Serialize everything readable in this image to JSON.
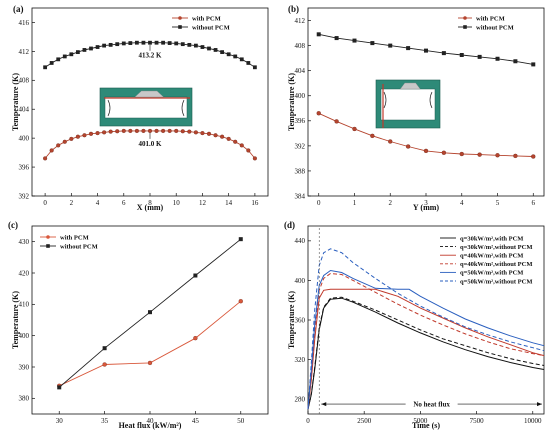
{
  "chart_data": [
    {
      "panel": "(a)",
      "type": "line",
      "xlabel": "X (mm)",
      "ylabel": "Temperature (K)",
      "xlim": [
        -1,
        17
      ],
      "ylim": [
        392,
        418
      ],
      "xticks": [
        0,
        2,
        4,
        6,
        8,
        10,
        12,
        14,
        16
      ],
      "yticks": [
        392,
        396,
        400,
        404,
        408,
        412,
        416
      ],
      "legend": "top-right",
      "annotations": [
        {
          "text": "413.2 K",
          "x": 8,
          "y": 413.2
        },
        {
          "text": "401.0 K",
          "x": 8,
          "y": 401.0
        }
      ],
      "series": [
        {
          "name": "with PCM",
          "color": "#b5442e",
          "marker": "circle",
          "x": [
            0,
            0.5,
            1,
            1.5,
            2,
            2.5,
            3,
            3.5,
            4,
            4.5,
            5,
            5.5,
            6,
            6.5,
            7,
            7.5,
            8,
            8.5,
            9,
            9.5,
            10,
            10.5,
            11,
            11.5,
            12,
            12.5,
            13,
            13.5,
            14,
            14.5,
            15,
            15.5,
            16
          ],
          "y": [
            397.2,
            398.3,
            399.0,
            399.5,
            399.9,
            400.2,
            400.4,
            400.6,
            400.7,
            400.8,
            400.9,
            400.95,
            401.0,
            401.0,
            401.0,
            401.0,
            401.0,
            401.0,
            401.0,
            401.0,
            401.0,
            400.95,
            400.9,
            400.8,
            400.7,
            400.6,
            400.4,
            400.2,
            399.9,
            399.5,
            399.0,
            398.3,
            397.2
          ]
        },
        {
          "name": "without PCM",
          "color": "#222222",
          "marker": "square",
          "x": [
            0,
            0.5,
            1,
            1.5,
            2,
            2.5,
            3,
            3.5,
            4,
            4.5,
            5,
            5.5,
            6,
            6.5,
            7,
            7.5,
            8,
            8.5,
            9,
            9.5,
            10,
            10.5,
            11,
            11.5,
            12,
            12.5,
            13,
            13.5,
            14,
            14.5,
            15,
            15.5,
            16
          ],
          "y": [
            409.8,
            410.4,
            410.9,
            411.3,
            411.6,
            411.9,
            412.2,
            412.4,
            412.6,
            412.8,
            412.9,
            413.0,
            413.1,
            413.15,
            413.2,
            413.2,
            413.2,
            413.2,
            413.2,
            413.15,
            413.1,
            413.0,
            412.9,
            412.8,
            412.6,
            412.4,
            412.2,
            411.9,
            411.6,
            411.3,
            410.9,
            410.4,
            409.8
          ]
        }
      ]
    },
    {
      "panel": "(b)",
      "type": "line",
      "xlabel": "Y (mm)",
      "ylabel": "Temperature (K)",
      "xlim": [
        -0.3,
        6.3
      ],
      "ylim": [
        384,
        414
      ],
      "xticks": [
        0,
        1,
        2,
        3,
        4,
        5,
        6
      ],
      "yticks": [
        384,
        388,
        392,
        396,
        400,
        404,
        408,
        412
      ],
      "legend": "top-right",
      "series": [
        {
          "name": "with PCM",
          "color": "#b5442e",
          "marker": "circle",
          "x": [
            0,
            0.5,
            1,
            1.5,
            2,
            2.5,
            3,
            3.5,
            4,
            4.5,
            5,
            5.5,
            6
          ],
          "y": [
            397.2,
            395.9,
            394.7,
            393.6,
            392.7,
            391.9,
            391.2,
            390.9,
            390.7,
            390.6,
            390.5,
            390.4,
            390.3
          ]
        },
        {
          "name": "without PCM",
          "color": "#222222",
          "marker": "square",
          "x": [
            0,
            0.5,
            1,
            1.5,
            2,
            2.5,
            3,
            3.5,
            4,
            4.5,
            5,
            5.5,
            6
          ],
          "y": [
            409.8,
            409.2,
            408.8,
            408.4,
            408.0,
            407.6,
            407.2,
            406.8,
            406.5,
            406.2,
            405.9,
            405.5,
            405.0
          ]
        }
      ]
    },
    {
      "panel": "(c)",
      "type": "line",
      "xlabel": "Heat flux (kW/m²)",
      "ylabel": "Temperature (K)",
      "xlim": [
        27,
        53
      ],
      "ylim": [
        375,
        435
      ],
      "xticks": [
        30,
        35,
        40,
        45,
        50
      ],
      "yticks": [
        380,
        390,
        400,
        410,
        420,
        430
      ],
      "legend": "top-left",
      "series": [
        {
          "name": "with PCM",
          "color": "#d9583b",
          "marker": "circle",
          "x": [
            30,
            35,
            40,
            45,
            50
          ],
          "y": [
            384.0,
            390.8,
            391.3,
            399.2,
            411.0
          ]
        },
        {
          "name": "without PCM",
          "color": "#222222",
          "marker": "square",
          "x": [
            30,
            35,
            40,
            45,
            50
          ],
          "y": [
            383.5,
            396.0,
            407.5,
            419.2,
            430.8
          ]
        }
      ]
    },
    {
      "panel": "(d)",
      "type": "line",
      "xlabel": "Time (s)",
      "ylabel": "Temperature (K)",
      "xlim": [
        0,
        10500
      ],
      "ylim": [
        265,
        455
      ],
      "xticks": [
        0,
        2500,
        5000,
        7500,
        10000
      ],
      "yticks": [
        280,
        320,
        360,
        400,
        440
      ],
      "legend": "top-right",
      "annotation": "No heat flux",
      "series": [
        {
          "name": "q=30kW/m²,with PCM",
          "color": "#111111",
          "dash": "solid",
          "x": [
            0,
            150,
            300,
            500,
            700,
            1000,
            1500,
            2000,
            3000,
            4000,
            5000,
            6000,
            7000,
            8000,
            9000,
            10000,
            10500
          ],
          "y": [
            270,
            285,
            310,
            350,
            372,
            381,
            382,
            378,
            368,
            357,
            347,
            338,
            330,
            323,
            317,
            312,
            310
          ]
        },
        {
          "name": "q=30kW/m²,without PCM",
          "color": "#111111",
          "dash": "dashed",
          "x": [
            0,
            150,
            300,
            500,
            700,
            1000,
            1500,
            2000,
            3000,
            4000,
            5000,
            6000,
            7000,
            8000,
            9000,
            10000,
            10500
          ],
          "y": [
            270,
            286,
            312,
            352,
            373,
            382,
            383,
            379,
            370,
            360,
            350,
            341,
            334,
            327,
            321,
            316,
            314
          ]
        },
        {
          "name": "q=40kW/m²,with PCM",
          "color": "#c0392b",
          "dash": "solid",
          "x": [
            0,
            150,
            300,
            500,
            700,
            1000,
            2000,
            3000,
            4000,
            5000,
            6000,
            7000,
            8000,
            9000,
            10000,
            10500
          ],
          "y": [
            270,
            300,
            340,
            382,
            390,
            391,
            391,
            391,
            384,
            372,
            362,
            352,
            343,
            335,
            327,
            324
          ]
        },
        {
          "name": "q=40kW/m²,without PCM",
          "color": "#c0392b",
          "dash": "dashed",
          "x": [
            0,
            150,
            300,
            500,
            700,
            1000,
            1500,
            2000,
            3000,
            4000,
            5000,
            6000,
            7000,
            8000,
            9000,
            10000,
            10500
          ],
          "y": [
            270,
            305,
            350,
            390,
            402,
            407,
            406,
            400,
            388,
            376,
            365,
            355,
            346,
            338,
            331,
            326,
            324
          ]
        },
        {
          "name": "q=50kW/m²,with PCM",
          "color": "#2a5fbf",
          "dash": "solid",
          "x": [
            0,
            150,
            300,
            500,
            700,
            1000,
            1500,
            2000,
            3000,
            4000,
            4500,
            5000,
            6000,
            7000,
            8000,
            9000,
            10000,
            10500
          ],
          "y": [
            270,
            310,
            355,
            395,
            405,
            410,
            408,
            402,
            392,
            391,
            391,
            384,
            372,
            361,
            352,
            344,
            337,
            334
          ]
        },
        {
          "name": "q=50kW/m²,without PCM",
          "color": "#2a5fbf",
          "dash": "dashed",
          "x": [
            0,
            150,
            300,
            500,
            700,
            1000,
            1500,
            2000,
            3000,
            4000,
            5000,
            6000,
            7000,
            8000,
            9000,
            10000,
            10500
          ],
          "y": [
            270,
            318,
            370,
            415,
            428,
            432,
            428,
            418,
            402,
            387,
            374,
            363,
            353,
            345,
            338,
            332,
            329
          ]
        }
      ]
    }
  ]
}
